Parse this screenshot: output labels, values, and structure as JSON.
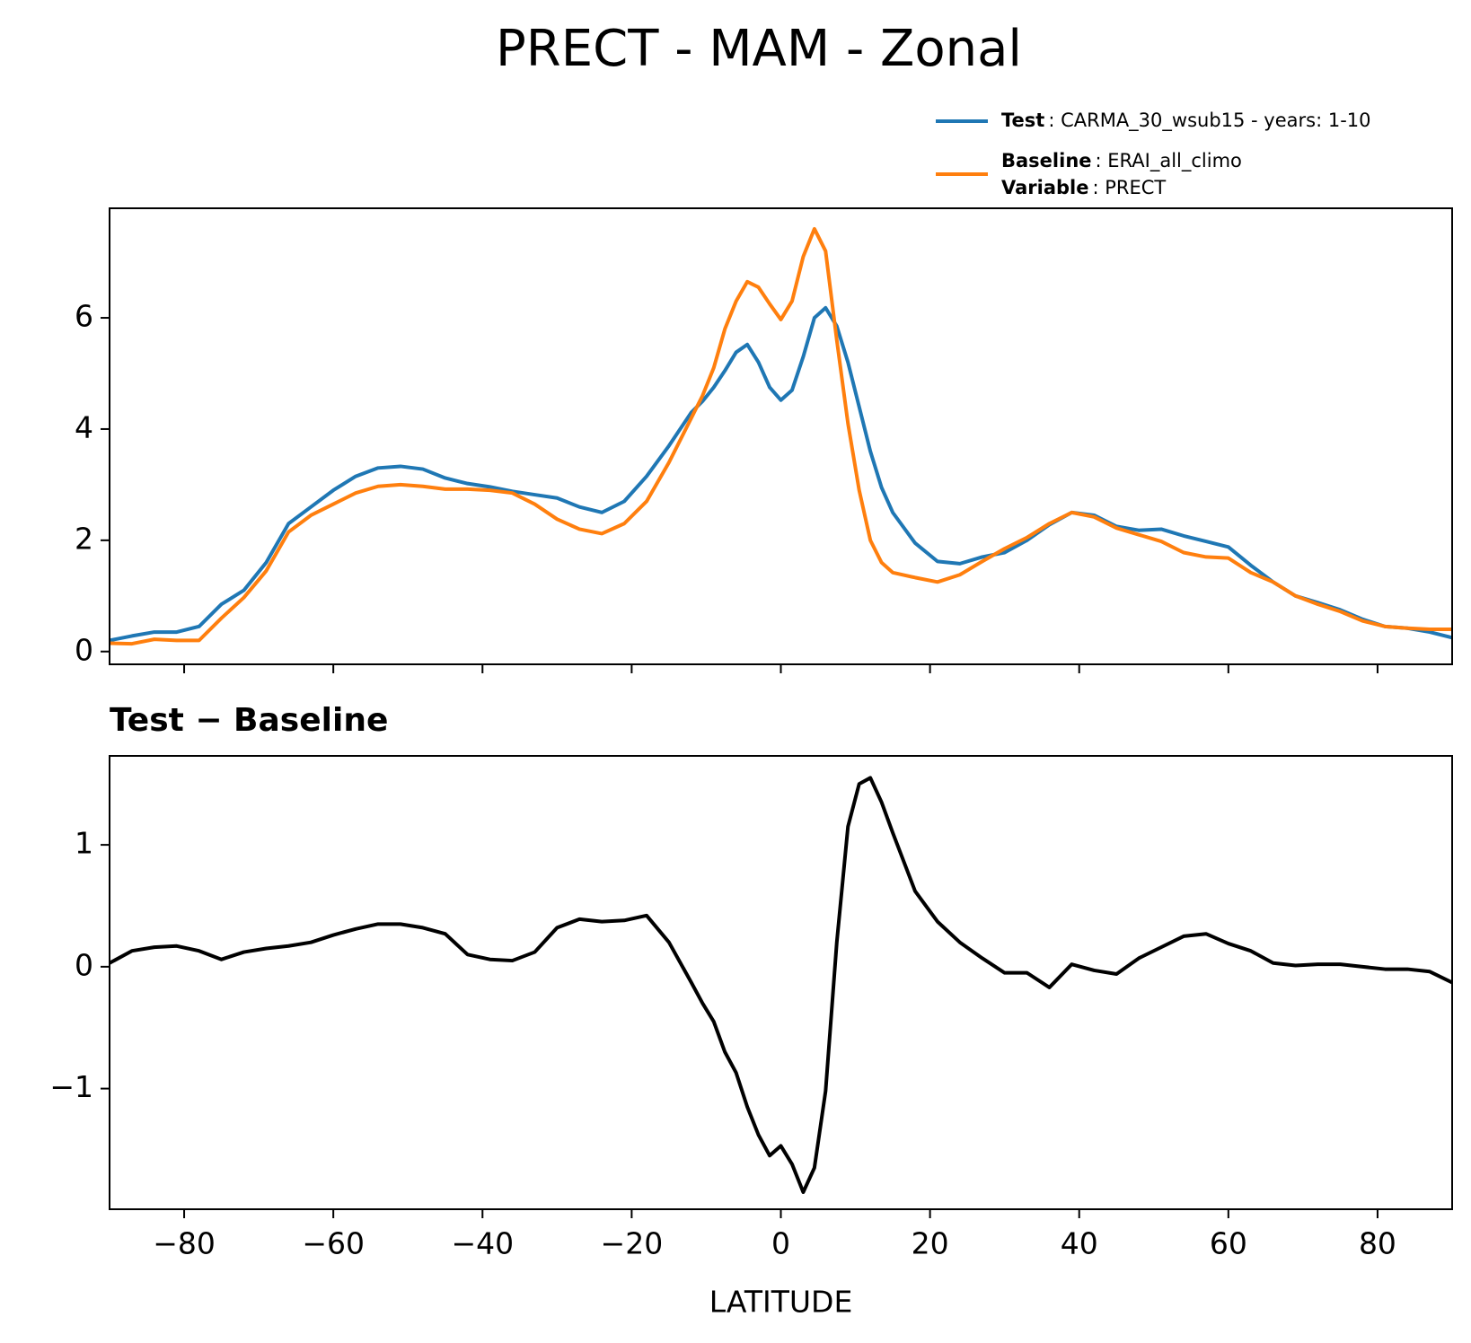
{
  "title": "PRECT - MAM - Zonal",
  "chart_data": [
    {
      "type": "line",
      "x": [
        -90,
        -87,
        -84,
        -81,
        -78,
        -75,
        -72,
        -69,
        -66,
        -63,
        -60,
        -57,
        -54,
        -51,
        -48,
        -45,
        -42,
        -39,
        -36,
        -33,
        -30,
        -27,
        -24,
        -21,
        -18,
        -15,
        -12,
        -10.5,
        -9,
        -7.5,
        -6,
        -4.5,
        -3,
        -1.5,
        0,
        1.5,
        3,
        4.5,
        6,
        7.5,
        9,
        10.5,
        12,
        13.5,
        15,
        18,
        21,
        24,
        27,
        30,
        33,
        36,
        39,
        42,
        45,
        48,
        51,
        54,
        57,
        60,
        63,
        66,
        69,
        72,
        75,
        78,
        81,
        84,
        87,
        90
      ],
      "series": [
        {
          "name": "Test",
          "detail": ": CARMA_30_wsub15 - years: 1-10",
          "color": "#1f77b4",
          "values": [
            0.2,
            0.28,
            0.35,
            0.35,
            0.45,
            0.85,
            1.1,
            1.6,
            2.3,
            2.6,
            2.9,
            3.15,
            3.3,
            3.33,
            3.28,
            3.12,
            3.02,
            2.96,
            2.88,
            2.82,
            2.76,
            2.6,
            2.5,
            2.7,
            3.15,
            3.7,
            4.3,
            4.5,
            4.75,
            5.05,
            5.38,
            5.52,
            5.2,
            4.75,
            4.52,
            4.7,
            5.3,
            6.0,
            6.18,
            5.85,
            5.2,
            4.4,
            3.6,
            2.95,
            2.5,
            1.95,
            1.62,
            1.58,
            1.7,
            1.78,
            2.0,
            2.28,
            2.5,
            2.45,
            2.25,
            2.18,
            2.2,
            2.08,
            1.98,
            1.88,
            1.55,
            1.25,
            1.0,
            0.88,
            0.75,
            0.58,
            0.45,
            0.42,
            0.35,
            0.25
          ]
        },
        {
          "name": "Baseline",
          "detail": ": ERAI_all_climo",
          "color": "#ff7f0e",
          "values": [
            0.15,
            0.14,
            0.22,
            0.2,
            0.2,
            0.6,
            0.97,
            1.45,
            2.15,
            2.45,
            2.65,
            2.85,
            2.97,
            3.0,
            2.97,
            2.92,
            2.92,
            2.9,
            2.85,
            2.65,
            2.38,
            2.2,
            2.12,
            2.3,
            2.7,
            3.4,
            4.2,
            4.6,
            5.1,
            5.8,
            6.3,
            6.65,
            6.55,
            6.25,
            5.97,
            6.3,
            7.1,
            7.6,
            7.2,
            5.6,
            4.1,
            2.9,
            2.0,
            1.6,
            1.42,
            1.33,
            1.25,
            1.38,
            1.62,
            1.85,
            2.05,
            2.3,
            2.5,
            2.42,
            2.22,
            2.1,
            1.98,
            1.78,
            1.7,
            1.68,
            1.42,
            1.25,
            1.0,
            0.85,
            0.72,
            0.55,
            0.45,
            0.42,
            0.4,
            0.4
          ]
        }
      ],
      "legend_extra": {
        "name": "Variable",
        "detail": ": PRECT"
      },
      "legend": "upper right",
      "xlim": [
        -90,
        90
      ],
      "xticks": [
        -80,
        -60,
        -40,
        -20,
        0,
        20,
        40,
        60,
        80
      ],
      "ylim": [
        -0.23,
        7.97
      ],
      "yticks": [
        0,
        2,
        4,
        6
      ]
    },
    {
      "type": "line",
      "title": "Test − Baseline",
      "x": [
        -90,
        -87,
        -84,
        -81,
        -78,
        -75,
        -72,
        -69,
        -66,
        -63,
        -60,
        -57,
        -54,
        -51,
        -48,
        -45,
        -42,
        -39,
        -36,
        -33,
        -30,
        -27,
        -24,
        -21,
        -18,
        -15,
        -12,
        -10.5,
        -9,
        -7.5,
        -6,
        -4.5,
        -3,
        -1.5,
        0,
        1.5,
        3,
        4.5,
        6,
        7.5,
        9,
        10.5,
        12,
        13.5,
        15,
        18,
        21,
        24,
        27,
        30,
        33,
        36,
        39,
        42,
        45,
        48,
        51,
        54,
        57,
        60,
        63,
        66,
        69,
        72,
        75,
        78,
        81,
        84,
        87,
        90
      ],
      "color": "#000000",
      "values": [
        0.03,
        0.13,
        0.16,
        0.17,
        0.13,
        0.06,
        0.12,
        0.15,
        0.17,
        0.2,
        0.26,
        0.31,
        0.35,
        0.35,
        0.32,
        0.27,
        0.1,
        0.06,
        0.05,
        0.12,
        0.32,
        0.39,
        0.37,
        0.38,
        0.42,
        0.2,
        -0.13,
        -0.3,
        -0.45,
        -0.7,
        -0.87,
        -1.15,
        -1.38,
        -1.55,
        -1.47,
        -1.62,
        -1.85,
        -1.65,
        -1.02,
        0.2,
        1.15,
        1.5,
        1.55,
        1.35,
        1.1,
        0.62,
        0.37,
        0.2,
        0.07,
        -0.05,
        -0.05,
        -0.17,
        0.02,
        -0.03,
        -0.06,
        0.07,
        0.16,
        0.25,
        0.27,
        0.19,
        0.13,
        0.03,
        0.01,
        0.02,
        0.02,
        0,
        -0.02,
        -0.02,
        -0.04,
        -0.13
      ],
      "xlabel": "LATITUDE",
      "xlim": [
        -90,
        90
      ],
      "xticks": [
        {
          "value": -80,
          "label": "−80"
        },
        {
          "value": -60,
          "label": "−60"
        },
        {
          "value": -40,
          "label": "−40"
        },
        {
          "value": -20,
          "label": "−20"
        },
        0,
        20,
        40,
        60,
        80
      ],
      "ylim": [
        -1.99,
        1.73
      ],
      "yticks": [
        {
          "value": -1,
          "label": "−1"
        },
        0,
        1
      ]
    }
  ]
}
